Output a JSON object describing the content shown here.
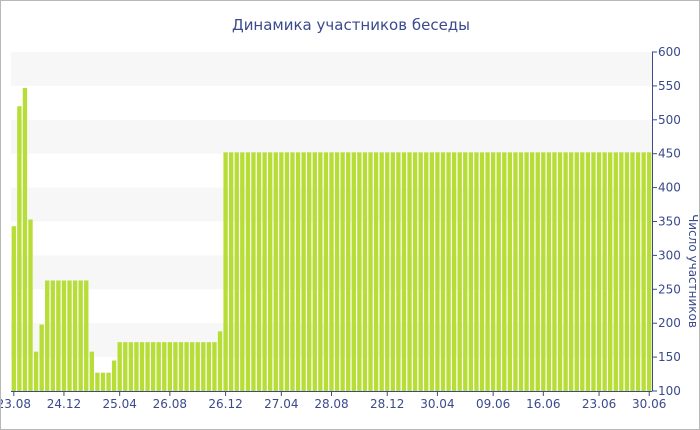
{
  "chart_data": {
    "type": "bar",
    "title": "Динамика участников беседы",
    "xlabel": "",
    "ylabel": "Число участников",
    "ylim": [
      100,
      600
    ],
    "yticks": [
      100,
      150,
      200,
      250,
      300,
      350,
      400,
      450,
      500,
      550,
      600
    ],
    "xtick_labels": [
      "23.08",
      "24.12",
      "25.04",
      "26.08",
      "26.12",
      "27.04",
      "28.08",
      "28.12",
      "30.04",
      "09.06",
      "16.06",
      "23.06",
      "30.06"
    ],
    "xtick_positions": [
      0,
      9,
      19,
      28,
      38,
      48,
      57,
      67,
      76,
      86,
      95,
      105,
      114
    ],
    "grid": "horizontal alternating bands",
    "colors": {
      "bar": "#b7dd37",
      "band": "#f7f7f7",
      "text": "#3a4a8c",
      "axis": "#3a4a8c"
    },
    "values": [
      343,
      520,
      547,
      353,
      158,
      198,
      263,
      263,
      263,
      263,
      263,
      263,
      263,
      263,
      158,
      127,
      127,
      127,
      145,
      172,
      172,
      172,
      172,
      172,
      172,
      172,
      172,
      172,
      172,
      172,
      172,
      172,
      172,
      172,
      172,
      172,
      172,
      188,
      452,
      452,
      452,
      452,
      452,
      452,
      452,
      452,
      452,
      452,
      452,
      452,
      452,
      452,
      452,
      452,
      452,
      452,
      452,
      452,
      452,
      452,
      452,
      452,
      452,
      452,
      452,
      452,
      452,
      452,
      452,
      452,
      452,
      452,
      452,
      452,
      452,
      452,
      452,
      452,
      452,
      452,
      452,
      452,
      452,
      452,
      452,
      452,
      452,
      452,
      452,
      452,
      452,
      452,
      452,
      452,
      452,
      452,
      452,
      452,
      452,
      452,
      452,
      452,
      452,
      452,
      452,
      452,
      452,
      452,
      452,
      452,
      452,
      452,
      452,
      452,
      452
    ]
  }
}
